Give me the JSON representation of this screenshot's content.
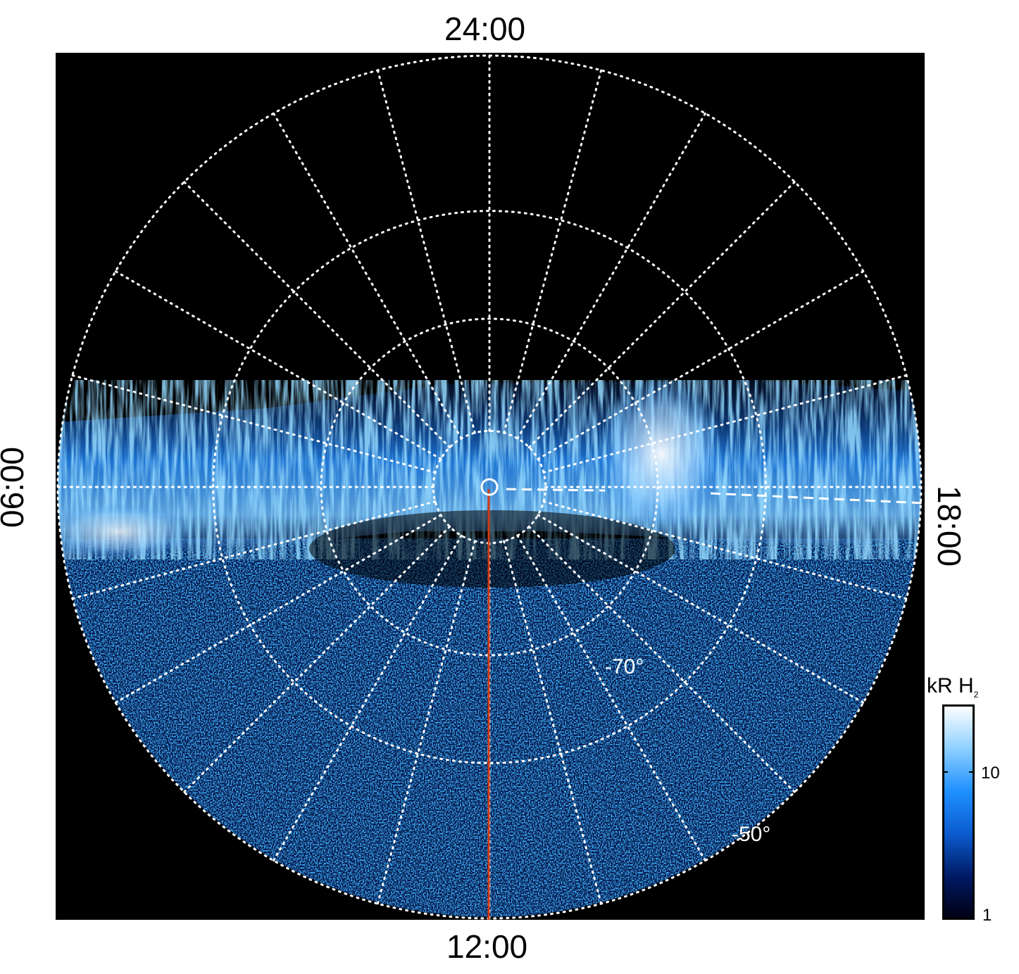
{
  "labels": {
    "top": "24:00",
    "bottom": "12:00",
    "left": "06:00",
    "right": "18:00",
    "lat_70": "-70°",
    "lat_50": "-50°"
  },
  "colorbar": {
    "title_main": "kR H",
    "title_sub": "2",
    "ticks": [
      "10",
      "1"
    ],
    "colors": [
      "#000010",
      "#001a66",
      "#0b5ccf",
      "#1f90ff",
      "#8fd0ff",
      "#ffffff"
    ]
  },
  "colors": {
    "background": "#000000",
    "grid": "#ffffff",
    "meridian": "#d23a14"
  }
}
